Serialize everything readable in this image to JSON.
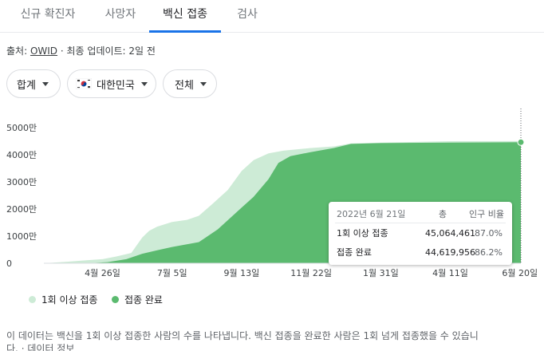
{
  "tabs": [
    "신규 확진자",
    "사망자",
    "백신 접종",
    "검사"
  ],
  "source": {
    "prefix": "출처:",
    "name": "OWID",
    "updated": "· 최종 업데이트: 2일 전"
  },
  "filters": {
    "metric": "합계",
    "country": "대한민국",
    "range": "전체"
  },
  "colors": {
    "accent": "#1a73e8",
    "partial": "#cdebd6",
    "full": "#5bba6f"
  },
  "tooltip": {
    "date": "2022년 6월 21일",
    "col_total": "총",
    "col_pct": "인구 비율",
    "rows": [
      {
        "label": "1회 이상 접종",
        "total": "45,064,461",
        "pct": "87.0%"
      },
      {
        "label": "접종 완료",
        "total": "44,619,956",
        "pct": "86.2%"
      }
    ]
  },
  "chart_data": {
    "type": "area",
    "y_unit": "만",
    "ylim": [
      0,
      5000
    ],
    "y_ticks": [
      0,
      1000,
      2000,
      3000,
      4000,
      5000
    ],
    "y_tick_labels": [
      "0",
      "1000만",
      "2000만",
      "3000만",
      "4000만",
      "5000만"
    ],
    "x_tick_labels": [
      "4월 26일",
      "7월 5일",
      "9월 13일",
      "11월 22일",
      "1월 31일",
      "4월 11일",
      "6월 20일"
    ],
    "x_tick_dates": [
      "2021-04-26",
      "2021-07-05",
      "2021-09-13",
      "2021-11-22",
      "2022-01-31",
      "2022-04-11",
      "2022-06-20"
    ],
    "x_range": [
      "2021-02-26",
      "2022-06-21"
    ],
    "grid": false,
    "legend_position": "bottom",
    "series": [
      {
        "name": "1회 이상 접종",
        "color": "#cdebd6",
        "points": [
          [
            "2021-02-26",
            0
          ],
          [
            "2021-03-20",
            50
          ],
          [
            "2021-04-10",
            110
          ],
          [
            "2021-04-26",
            150
          ],
          [
            "2021-05-10",
            250
          ],
          [
            "2021-05-25",
            380
          ],
          [
            "2021-06-05",
            950
          ],
          [
            "2021-06-12",
            1200
          ],
          [
            "2021-06-20",
            1350
          ],
          [
            "2021-07-05",
            1520
          ],
          [
            "2021-07-20",
            1600
          ],
          [
            "2021-08-01",
            1750
          ],
          [
            "2021-08-15",
            2200
          ],
          [
            "2021-08-30",
            2700
          ],
          [
            "2021-09-13",
            3400
          ],
          [
            "2021-09-25",
            3800
          ],
          [
            "2021-10-10",
            4050
          ],
          [
            "2021-10-25",
            4150
          ],
          [
            "2021-11-22",
            4250
          ],
          [
            "2021-12-15",
            4310
          ],
          [
            "2022-01-01",
            4420
          ],
          [
            "2022-01-31",
            4450
          ],
          [
            "2022-04-11",
            4500
          ],
          [
            "2022-06-21",
            4506
          ]
        ]
      },
      {
        "name": "접종 완료",
        "color": "#5bba6f",
        "points": [
          [
            "2021-02-26",
            0
          ],
          [
            "2021-04-15",
            10
          ],
          [
            "2021-05-01",
            40
          ],
          [
            "2021-05-20",
            150
          ],
          [
            "2021-06-05",
            350
          ],
          [
            "2021-06-20",
            480
          ],
          [
            "2021-07-05",
            600
          ],
          [
            "2021-08-01",
            780
          ],
          [
            "2021-08-20",
            1250
          ],
          [
            "2021-09-13",
            2050
          ],
          [
            "2021-09-25",
            2450
          ],
          [
            "2021-10-10",
            3100
          ],
          [
            "2021-10-20",
            3700
          ],
          [
            "2021-11-01",
            3950
          ],
          [
            "2021-11-22",
            4100
          ],
          [
            "2021-12-15",
            4250
          ],
          [
            "2022-01-01",
            4400
          ],
          [
            "2022-01-31",
            4430
          ],
          [
            "2022-04-11",
            4450
          ],
          [
            "2022-06-21",
            4462
          ]
        ]
      }
    ]
  }
}
